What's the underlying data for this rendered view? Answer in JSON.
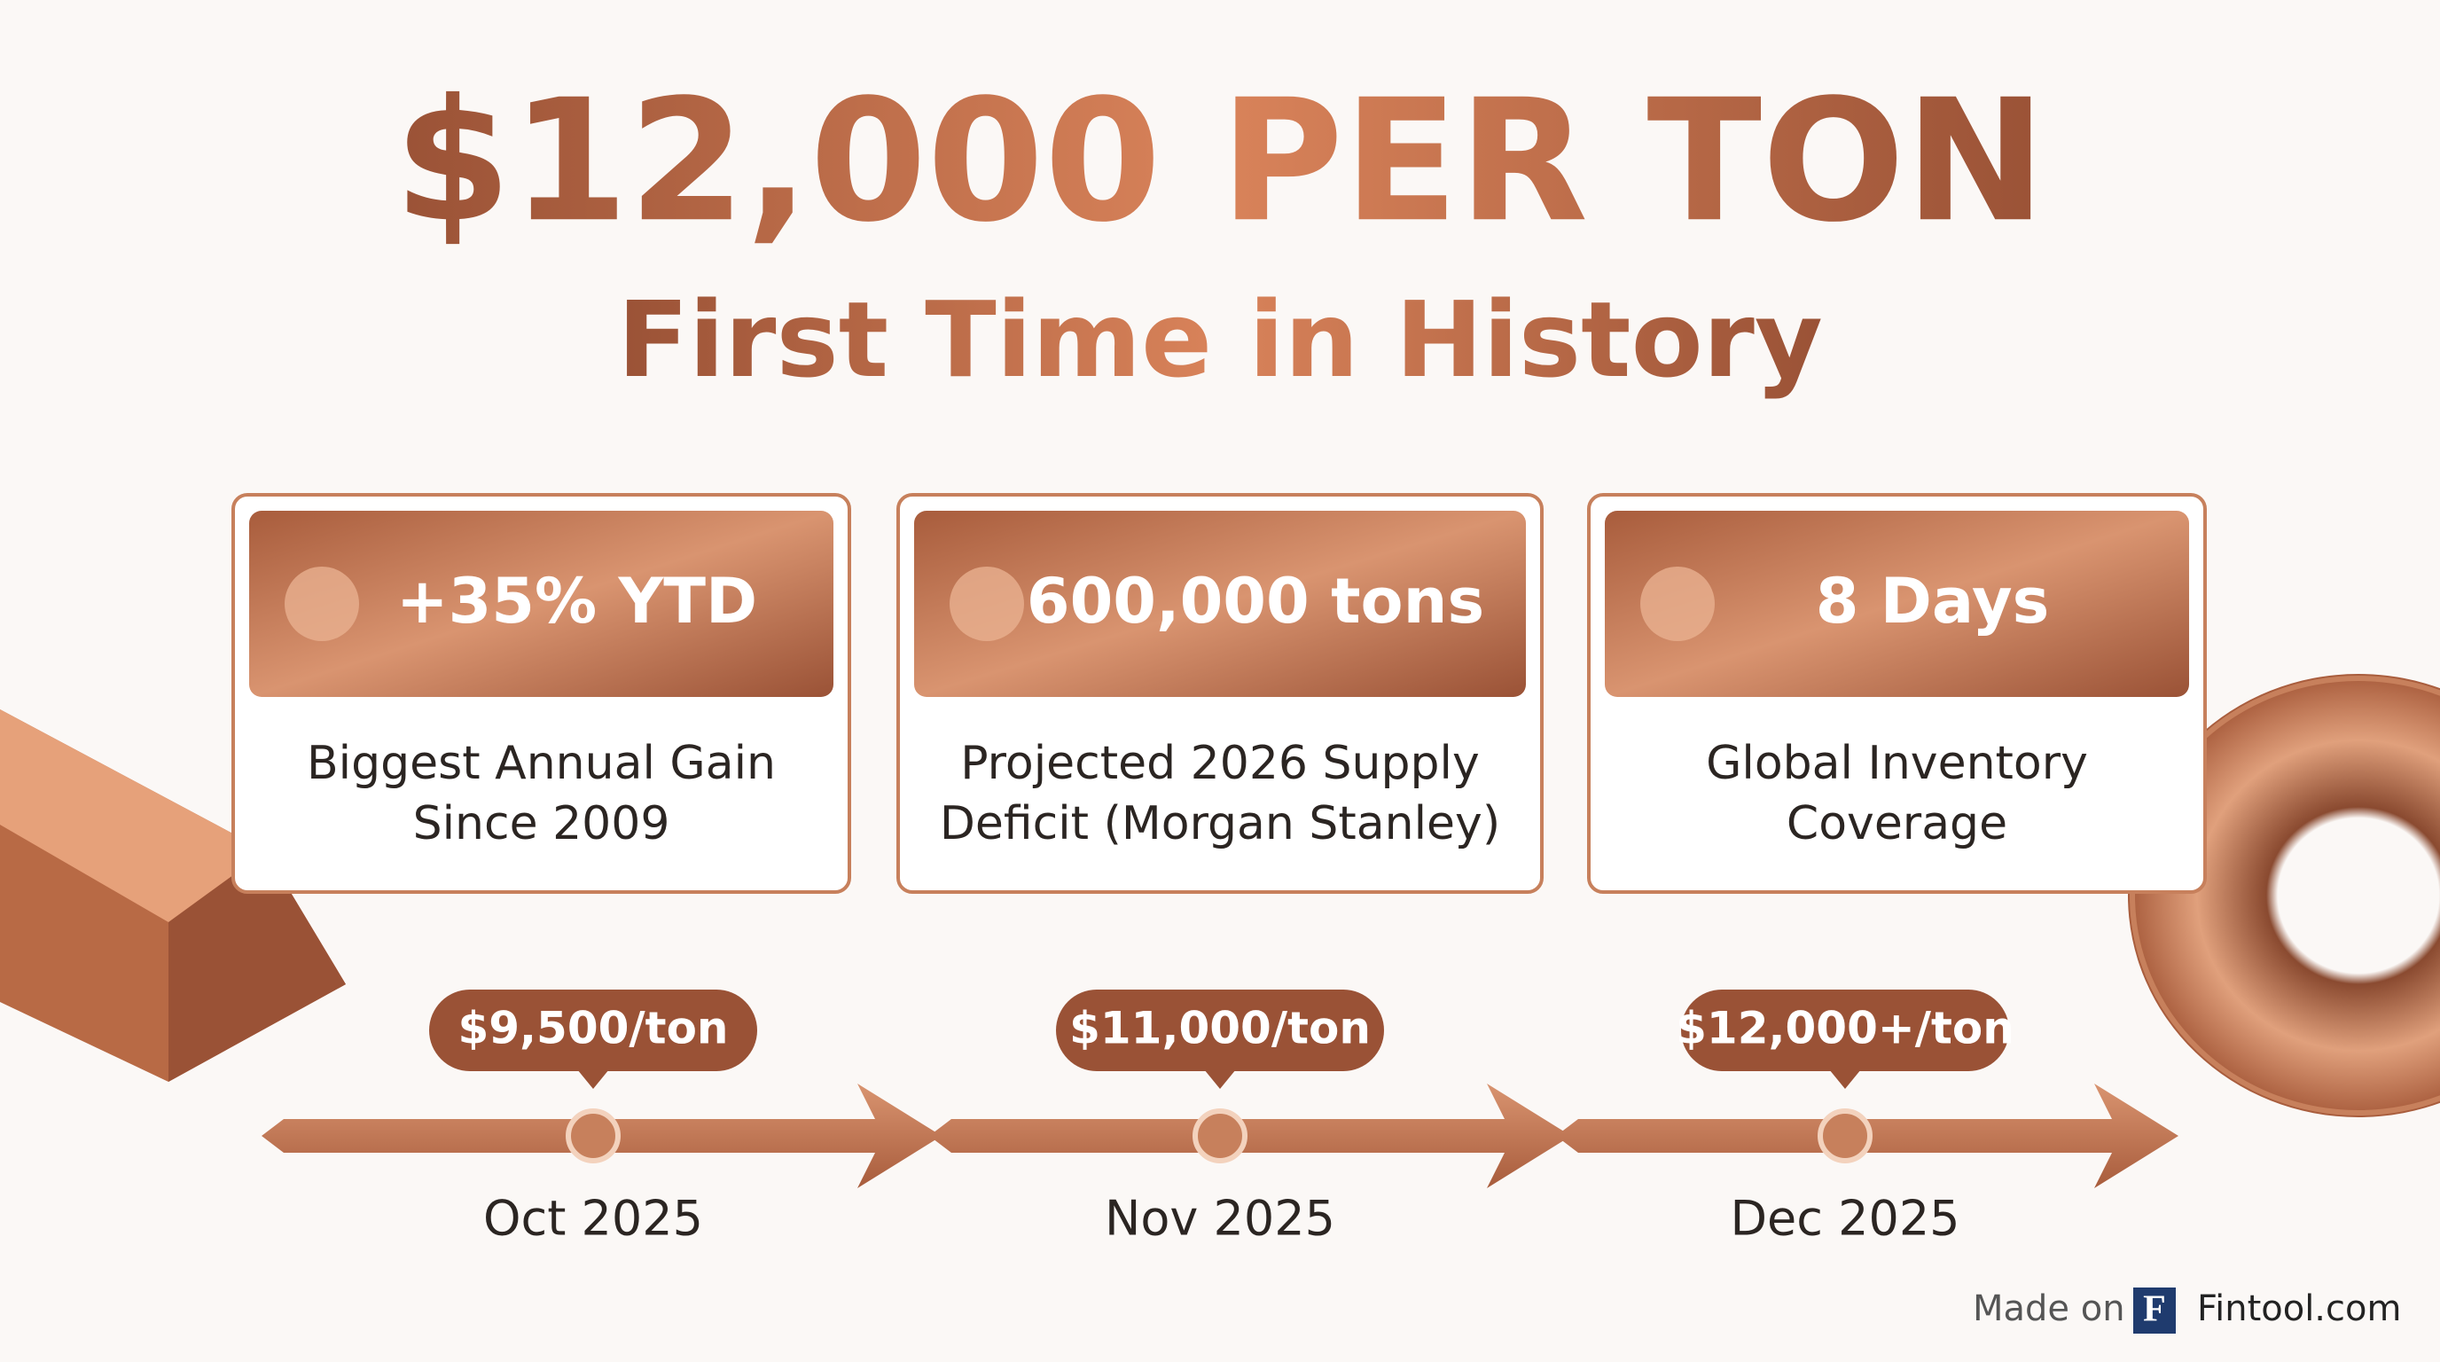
{
  "header": {
    "title": "$12,000 PER TON",
    "subtitle": "First Time in History"
  },
  "cards": [
    {
      "stat": "+35% YTD",
      "description": [
        "Biggest Annual Gain",
        "Since 2009"
      ]
    },
    {
      "stat": "600,000 tons",
      "description": [
        "Projected 2026 Supply",
        "Deficit (Morgan Stanley)"
      ]
    },
    {
      "stat": "8 Days",
      "description": [
        "Global Inventory",
        "Coverage"
      ]
    }
  ],
  "timeline": [
    {
      "price": "$9,500/ton",
      "date": "Oct 2025"
    },
    {
      "price": "$11,000/ton",
      "date": "Nov 2025"
    },
    {
      "price": "$12,000+/ton",
      "date": "Dec 2025"
    }
  ],
  "footer": {
    "prefix": "Made on",
    "logo": "F",
    "brand": "Fintool.com"
  }
}
